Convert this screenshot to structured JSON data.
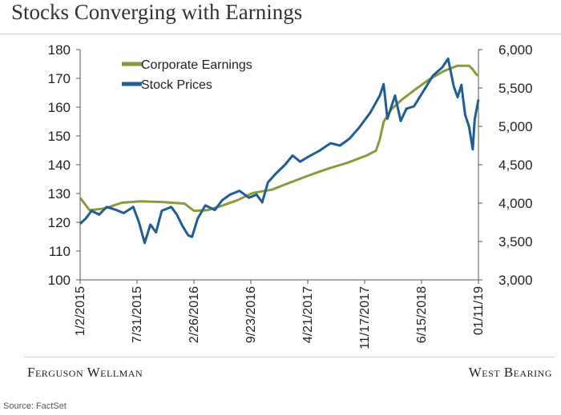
{
  "page": {
    "title": "Stocks Converging with Earnings",
    "footer_left": "Ferguson Wellman",
    "footer_right": "West Bearing",
    "source": "Source: FactSet"
  },
  "chart_data": {
    "type": "line",
    "title": "Stocks Converging with Earnings",
    "xlabel": "",
    "ylabel": "",
    "x_tick_labels": [
      "1/2/2015",
      "7/31/2015",
      "2/26/2016",
      "9/23/2016",
      "4/21/2017",
      "11/17/2017",
      "6/15/2018",
      "01/11/19"
    ],
    "x_tick_dates": [
      "2015-01-02",
      "2015-07-31",
      "2016-02-26",
      "2016-09-23",
      "2017-04-21",
      "2017-11-17",
      "2018-06-15",
      "2019-01-11"
    ],
    "left_axis": {
      "ylim": [
        100,
        180
      ],
      "ticks": [
        "100",
        "110",
        "120",
        "130",
        "140",
        "150",
        "160",
        "170",
        "180"
      ]
    },
    "right_axis": {
      "ylim": [
        3000,
        6000
      ],
      "ticks": [
        "3,000",
        "3,500",
        "4,000",
        "4,500",
        "5,000",
        "5,500",
        "6,000"
      ]
    },
    "grid": false,
    "legend_placement": "top-left",
    "series": [
      {
        "name": "Corporate Earnings",
        "axis": "left",
        "color": "#8a9a3a",
        "points": [
          [
            "2015-01-02",
            128.5
          ],
          [
            "2015-02-06",
            124.2
          ],
          [
            "2015-04-03",
            124.8
          ],
          [
            "2015-06-05",
            126.8
          ],
          [
            "2015-08-14",
            127.3
          ],
          [
            "2015-11-06",
            127.0
          ],
          [
            "2016-01-22",
            126.5
          ],
          [
            "2016-02-26",
            124.0
          ],
          [
            "2016-04-15",
            124.2
          ],
          [
            "2016-06-10",
            125.8
          ],
          [
            "2016-08-05",
            127.7
          ],
          [
            "2016-09-30",
            130.2
          ],
          [
            "2016-12-09",
            131.3
          ],
          [
            "2017-02-17",
            133.9
          ],
          [
            "2017-04-28",
            136.4
          ],
          [
            "2017-07-07",
            138.7
          ],
          [
            "2017-09-15",
            140.7
          ],
          [
            "2017-11-24",
            143.2
          ],
          [
            "2017-12-29",
            144.9
          ],
          [
            "2018-01-12",
            148.8
          ],
          [
            "2018-01-26",
            154.9
          ],
          [
            "2018-02-23",
            159.2
          ],
          [
            "2018-04-06",
            162.8
          ],
          [
            "2018-05-25",
            166.3
          ],
          [
            "2018-07-13",
            169.6
          ],
          [
            "2018-09-07",
            172.6
          ],
          [
            "2018-10-26",
            174.4
          ],
          [
            "2018-12-07",
            174.4
          ],
          [
            "2018-12-21",
            173.1
          ],
          [
            "2019-01-04",
            171.3
          ],
          [
            "2019-01-11",
            171.0
          ]
        ]
      },
      {
        "name": "Stock Prices",
        "axis": "right",
        "color": "#1f5d94",
        "points": [
          [
            "2015-01-02",
            3730
          ],
          [
            "2015-01-23",
            3800
          ],
          [
            "2015-02-13",
            3900
          ],
          [
            "2015-03-13",
            3850
          ],
          [
            "2015-04-10",
            3950
          ],
          [
            "2015-05-15",
            3910
          ],
          [
            "2015-06-12",
            3870
          ],
          [
            "2015-07-17",
            3950
          ],
          [
            "2015-08-07",
            3750
          ],
          [
            "2015-08-28",
            3480
          ],
          [
            "2015-09-18",
            3720
          ],
          [
            "2015-10-09",
            3620
          ],
          [
            "2015-10-30",
            3900
          ],
          [
            "2015-12-04",
            3950
          ],
          [
            "2015-12-25",
            3850
          ],
          [
            "2016-01-15",
            3700
          ],
          [
            "2016-02-05",
            3580
          ],
          [
            "2016-02-19",
            3560
          ],
          [
            "2016-03-11",
            3800
          ],
          [
            "2016-04-08",
            3970
          ],
          [
            "2016-05-13",
            3910
          ],
          [
            "2016-06-10",
            4040
          ],
          [
            "2016-07-08",
            4110
          ],
          [
            "2016-08-12",
            4160
          ],
          [
            "2016-09-16",
            4070
          ],
          [
            "2016-10-14",
            4110
          ],
          [
            "2016-11-04",
            4010
          ],
          [
            "2016-11-25",
            4270
          ],
          [
            "2016-12-23",
            4380
          ],
          [
            "2017-01-27",
            4500
          ],
          [
            "2017-02-24",
            4620
          ],
          [
            "2017-03-24",
            4540
          ],
          [
            "2017-04-21",
            4600
          ],
          [
            "2017-06-02",
            4680
          ],
          [
            "2017-07-14",
            4780
          ],
          [
            "2017-08-18",
            4750
          ],
          [
            "2017-09-22",
            4840
          ],
          [
            "2017-10-27",
            4980
          ],
          [
            "2017-12-08",
            5180
          ],
          [
            "2018-01-12",
            5400
          ],
          [
            "2018-01-26",
            5550
          ],
          [
            "2018-02-09",
            5100
          ],
          [
            "2018-03-09",
            5400
          ],
          [
            "2018-03-30",
            5070
          ],
          [
            "2018-04-20",
            5230
          ],
          [
            "2018-05-18",
            5260
          ],
          [
            "2018-06-15",
            5420
          ],
          [
            "2018-07-27",
            5660
          ],
          [
            "2018-08-31",
            5770
          ],
          [
            "2018-09-21",
            5880
          ],
          [
            "2018-10-12",
            5520
          ],
          [
            "2018-10-26",
            5380
          ],
          [
            "2018-11-09",
            5540
          ],
          [
            "2018-11-23",
            5150
          ],
          [
            "2018-12-07",
            5000
          ],
          [
            "2018-12-21",
            4700
          ],
          [
            "2018-12-28",
            5090
          ],
          [
            "2019-01-11",
            5350
          ]
        ]
      }
    ]
  }
}
